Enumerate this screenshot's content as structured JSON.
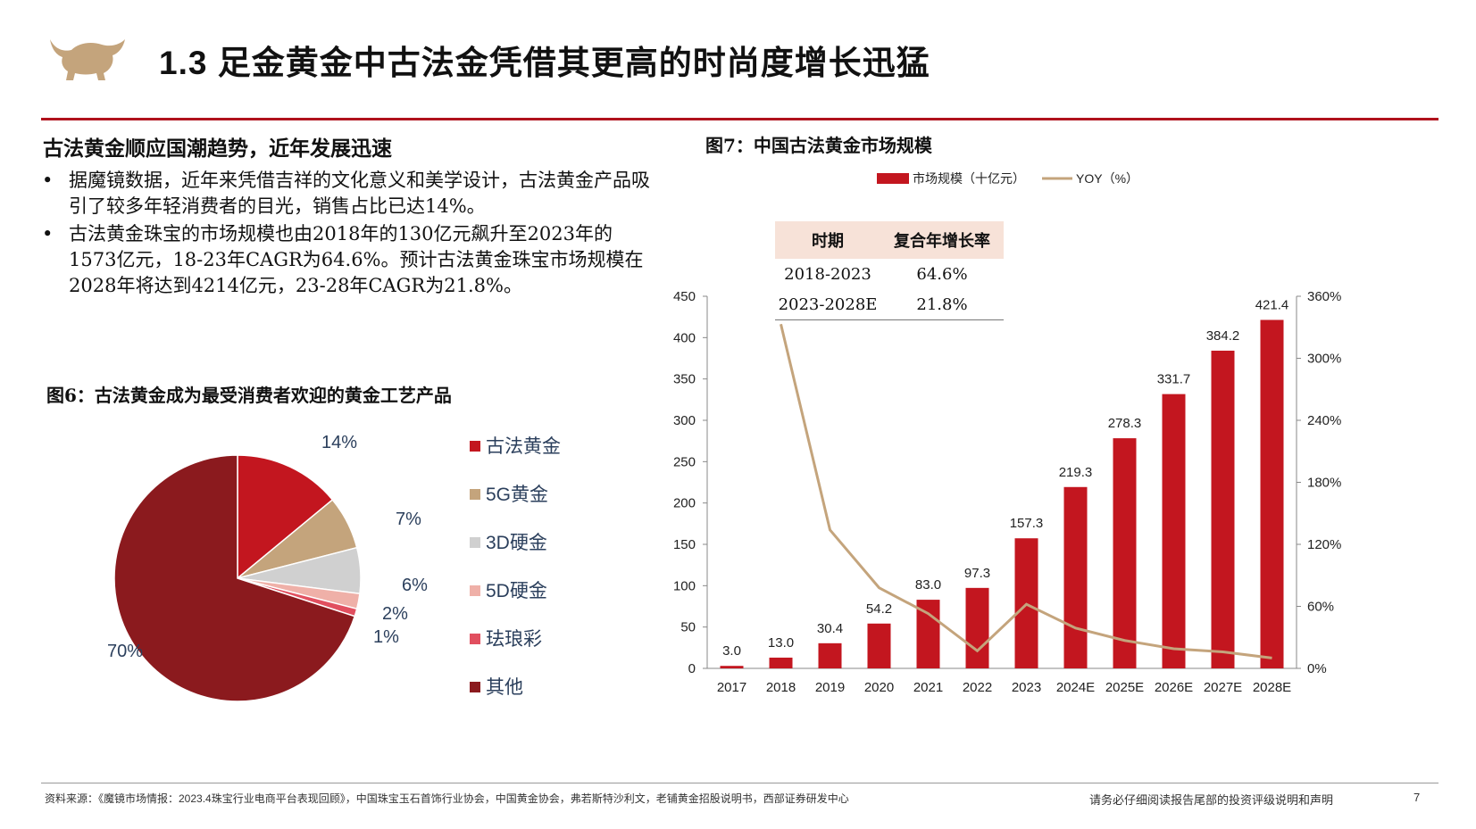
{
  "title": "1.3 足金黄金中古法金凭借其更高的时尚度增长迅猛",
  "section_heading": "古法黄金顺应国潮趋势，近年发展迅速",
  "bullets": [
    "据魔镜数据，近年来凭借吉祥的文化意义和美学设计，古法黄金产品吸引了较多年轻消费者的目光，销售占比已达14%。",
    "古法黄金珠宝的市场规模也由2018年的130亿元飙升至2023年的 1573亿元，18-23年CAGR为64.6%。预计古法黄金珠宝市场规模在2028年将达到4214亿元，23-28年CAGR为21.8%。"
  ],
  "fig6_title": "图6：古法黄金成为最受消费者欢迎的黄金工艺产品",
  "fig7_title": "图7：中国古法黄金市场规模",
  "cagr_table": {
    "headers": [
      "时期",
      "复合年增长率"
    ],
    "rows": [
      [
        "2018-2023",
        "64.6%"
      ],
      [
        "2023-2028E",
        "21.8%"
      ]
    ]
  },
  "footer": {
    "source": "资料来源：《魔镜市场情报：2023.4珠宝行业电商平台表现回顾》，中国珠宝玉石首饰行业协会，中国黄金协会，弗若斯特沙利文，老铺黄金招股说明书，西部证券研发中心",
    "disclaimer": "请务必仔细阅读报告尾部的投资评级说明和声明",
    "page": "7"
  },
  "colors": {
    "accent": "#b0121c",
    "bar": "#c3161f",
    "line": "#c4a47c"
  },
  "chart_data": [
    {
      "type": "pie",
      "title": "图6：古法黄金成为最受消费者欢迎的黄金工艺产品",
      "slices": [
        {
          "name": "古法黄金",
          "value": 14,
          "label": "14%",
          "color": "#c3161f"
        },
        {
          "name": "5G黄金",
          "value": 7,
          "label": "7%",
          "color": "#c4a47c"
        },
        {
          "name": "3D硬金",
          "value": 6,
          "label": "6%",
          "color": "#d0d0d0"
        },
        {
          "name": "5D硬金",
          "value": 2,
          "label": "2%",
          "color": "#efb0a8"
        },
        {
          "name": "珐琅彩",
          "value": 1,
          "label": "1%",
          "color": "#e14f5f"
        },
        {
          "name": "其他",
          "value": 70,
          "label": "70%",
          "color": "#8b1a1e"
        }
      ]
    },
    {
      "type": "bar",
      "title": "图7：中国古法黄金市场规模",
      "categories": [
        "2017",
        "2018",
        "2019",
        "2020",
        "2021",
        "2022",
        "2023",
        "2024E",
        "2025E",
        "2026E",
        "2027E",
        "2028E"
      ],
      "series": [
        {
          "name": "市场规模（十亿元）",
          "type": "bar",
          "axis": "left",
          "values": [
            3.0,
            13.0,
            30.4,
            54.2,
            83.0,
            97.3,
            157.3,
            219.3,
            278.3,
            331.7,
            384.2,
            421.4
          ],
          "labels": [
            "3.0",
            "13.0",
            "30.4",
            "54.2",
            "83.0",
            "97.3",
            "157.3",
            "219.3",
            "278.3",
            "331.7",
            "384.2",
            "421.4"
          ]
        },
        {
          "name": "YOY（%）",
          "type": "line",
          "axis": "right",
          "values": [
            null,
            333,
            134,
            78,
            53,
            17,
            62,
            39,
            27,
            19,
            16,
            10
          ]
        }
      ],
      "left_axis": {
        "min": 0,
        "max": 450,
        "ticks": [
          "0",
          "50",
          "100",
          "150",
          "200",
          "250",
          "300",
          "350",
          "400",
          "450"
        ]
      },
      "right_axis": {
        "min": 0,
        "max": 360,
        "ticks": [
          "0%",
          "60%",
          "120%",
          "180%",
          "240%",
          "300%",
          "360%"
        ]
      }
    }
  ]
}
